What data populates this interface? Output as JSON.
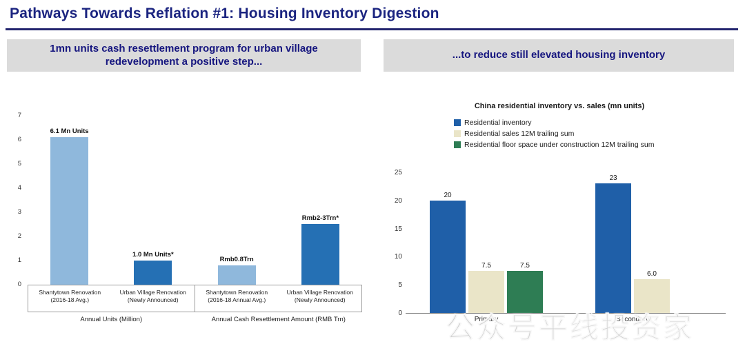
{
  "page_title": "Pathways Towards Reflation #1: Housing Inventory Digestion",
  "left_panel": {
    "header": "1mn units cash resettlement program for urban village redevelopment a positive step..."
  },
  "right_panel": {
    "header": "...to reduce still elevated housing inventory"
  },
  "watermark": "公众号平线投资家",
  "chart_data": [
    {
      "type": "bar",
      "title": "",
      "categories": [
        "Shantytown Renovation\n(2016-18 Avg.)",
        "Urban Village Renovation\n(Newly Announced)",
        "Shantytown Renovation\n(2016-18 Annual Avg.)",
        "Urban Village Renovation\n(Newly Announced)"
      ],
      "values": [
        6.1,
        1.0,
        0.8,
        2.5
      ],
      "bar_labels": [
        "6.1 Mn Units",
        "1.0 Mn Units*",
        "Rmb0.8Trn",
        "Rmb2-3Trn*"
      ],
      "bar_colors": [
        "#8FB8DC",
        "#2570B4",
        "#8FB8DC",
        "#2570B4"
      ],
      "group_labels": [
        "Annual Units (Million)",
        "Annual Cash Resettlement Amount (RMB Trn)"
      ],
      "xlabel": "",
      "ylabel": "",
      "ylim": [
        0,
        7
      ],
      "yticks": [
        0,
        1,
        2,
        3,
        4,
        5,
        6,
        7
      ],
      "grid": false,
      "legend_position": "none"
    },
    {
      "type": "bar",
      "title": "China residential inventory vs. sales (mn units)",
      "categories": [
        "Primary",
        "Secondary"
      ],
      "series": [
        {
          "name": "Residential inventory",
          "color": "#1F5FA8",
          "values": [
            20,
            23
          ]
        },
        {
          "name": "Residential sales 12M trailing sum",
          "color": "#EAE5C8",
          "values": [
            7.5,
            6.0
          ]
        },
        {
          "name": "Residential floor space under construction 12M trailing sum",
          "color": "#2E7D54",
          "values": [
            7.5,
            null
          ]
        }
      ],
      "value_labels": [
        [
          "20",
          "7.5",
          "7.5"
        ],
        [
          "23",
          "6.0"
        ]
      ],
      "xlabel": "",
      "ylabel": "",
      "ylim": [
        0,
        25
      ],
      "yticks": [
        0,
        5,
        10,
        15,
        20,
        25
      ],
      "grid": false,
      "legend_position": "top"
    }
  ]
}
